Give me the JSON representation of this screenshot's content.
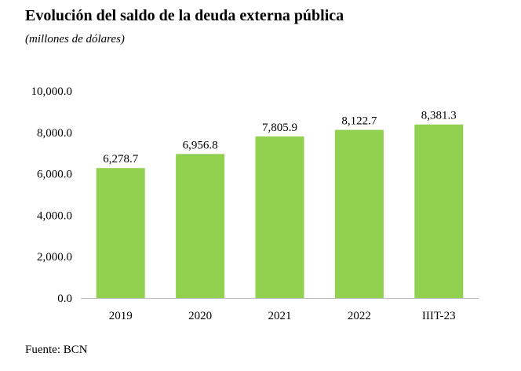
{
  "chart_data": {
    "type": "bar",
    "title": "Evolución del saldo de la deuda externa pública",
    "subtitle": "(millones de dólares)",
    "categories": [
      "2019",
      "2020",
      "2021",
      "2022",
      "IIIT-23"
    ],
    "values": [
      6278.7,
      6956.8,
      7805.9,
      8122.7,
      8381.3
    ],
    "data_labels": [
      "6,278.7",
      "6,956.8",
      "7,805.9",
      "8,122.7",
      "8,381.3"
    ],
    "ylim": [
      0,
      10000
    ],
    "yticks": [
      0,
      2000,
      4000,
      6000,
      8000,
      10000
    ],
    "ytick_labels": [
      "0.0",
      "2,000.0",
      "4,000.0",
      "6,000.0",
      "8,000.0",
      "10,000.0"
    ],
    "xlabel": "",
    "ylabel": "",
    "grid": false,
    "legend": "none",
    "bar_color": "#92d050"
  },
  "source": "Fuente: BCN"
}
